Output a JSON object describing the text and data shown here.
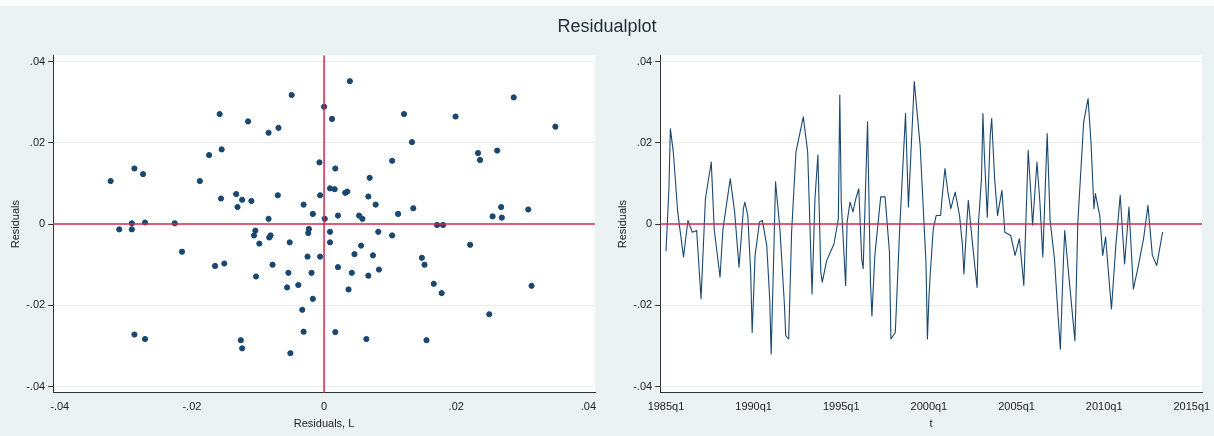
{
  "chart_data": [
    {
      "type": "scatter",
      "title": "Residualplot",
      "xlabel": "Residuals, L",
      "ylabel": "Residuals",
      "series": [
        {
          "color": "#1a476f",
          "x": [
            -0.0049,
            -0.0158,
            -0.0115,
            -0.0084,
            -0.0069,
            -0.0174,
            -0.0155,
            -0.0287,
            -0.0274,
            -0.0323,
            -0.0188,
            -0.0007,
            -0.0156,
            -0.0133,
            -0.0124,
            -0.011,
            -0.0131,
            -0.007,
            -0.0006,
            -0.0031,
            -0.0017,
            -0.0084,
            -0.031,
            -0.0291,
            -0.0291,
            -0.0271,
            -0.0226,
            -0.0215,
            -0.0104,
            -0.0106,
            -0.0098,
            -0.0081,
            -0.0083,
            -0.0052,
            -0.0023,
            -0.0024,
            -0.0165,
            -0.0151,
            -0.0103,
            -0.0078,
            -0.0054,
            -0.0025,
            -0.0006,
            -0.0019,
            -0.0056,
            -0.0039,
            -0.0017,
            -0.0033,
            -0.0031,
            -0.0287,
            -0.0271,
            -0.0126,
            -0.0124,
            -0.0051,
            0.0039,
            0.0,
            0.0012,
            0.0121,
            0.0199,
            0.0287,
            0.035,
            0.0133,
            0.0103,
            0.0017,
            0.0069,
            0.0233,
            0.0236,
            0.0262,
            0.0009,
            0.0016,
            0.0032,
            0.0035,
            0.0067,
            0.0078,
            0.0135,
            0.0112,
            0.0021,
            0.0053,
            0.0058,
            0.0001,
            0.0268,
            0.0255,
            0.0269,
            0.0309,
            0.0171,
            0.018,
            0.0009,
            0.0009,
            0.0082,
            0.0103,
            0.0221,
            0.0056,
            0.0046,
            0.0074,
            0.0021,
            0.0042,
            0.0067,
            0.0083,
            0.0148,
            0.0152,
            0.0037,
            0.0166,
            0.0178,
            0.0314,
            0.025,
            0.0017,
            0.0064,
            0.0155
          ],
          "values": [
            0.0318,
            0.0271,
            0.0253,
            0.0225,
            0.0237,
            0.017,
            0.0184,
            0.0137,
            0.0123,
            0.0106,
            0.0106,
            0.0152,
            0.0063,
            0.0074,
            0.006,
            0.0057,
            0.0042,
            0.0071,
            0.0071,
            0.0048,
            0.0025,
            0.0013,
            -0.0013,
            0.0002,
            -0.0013,
            0.0004,
            0.0002,
            -0.0068,
            -0.0016,
            -0.0028,
            -0.0048,
            -0.0028,
            -0.0033,
            -0.0045,
            -0.0012,
            -0.0022,
            -0.0103,
            -0.0097,
            -0.0129,
            -0.01,
            -0.012,
            -0.008,
            -0.008,
            -0.012,
            -0.0156,
            -0.015,
            -0.0184,
            -0.0211,
            -0.0265,
            -0.0272,
            -0.0283,
            -0.0286,
            -0.0306,
            -0.0318,
            0.0352,
            0.0289,
            0.0259,
            0.0271,
            0.0265,
            0.0312,
            0.024,
            0.0202,
            0.0156,
            0.0137,
            0.0114,
            0.0175,
            0.0158,
            0.0181,
            0.0088,
            0.0086,
            0.0077,
            0.008,
            0.0068,
            0.0048,
            0.0039,
            0.0025,
            0.0021,
            0.0021,
            0.0013,
            0.0013,
            0.0042,
            0.0019,
            0.0016,
            0.0036,
            -0.0002,
            -0.0002,
            -0.0019,
            -0.0045,
            -0.0019,
            -0.0028,
            -0.0051,
            -0.0053,
            -0.0074,
            -0.0077,
            -0.0106,
            -0.012,
            -0.0127,
            -0.0112,
            -0.0083,
            -0.01,
            -0.0161,
            -0.0147,
            -0.017,
            -0.0152,
            -0.0222,
            -0.0266,
            -0.0283,
            -0.0286
          ]
        }
      ],
      "xlim": [
        -0.041,
        0.041
      ],
      "xticks": [
        {
          "value": -0.04,
          "label": "-.04"
        },
        {
          "value": -0.02,
          "label": "-.02"
        },
        0,
        {
          "value": 0.02,
          "label": ".02"
        },
        {
          "value": 0.04,
          "label": ".04"
        }
      ],
      "ylim": [
        -0.0415,
        0.0415
      ],
      "yticks": [
        {
          "value": -0.04,
          "label": "-.04"
        },
        {
          "value": -0.02,
          "label": "-.02"
        },
        0,
        {
          "value": 0.02,
          "label": ".02"
        },
        {
          "value": 0.04,
          "label": ".04"
        }
      ],
      "ref_lines": [
        {
          "axis": "y",
          "value": 0,
          "color": "#d0294b"
        },
        {
          "axis": "x",
          "value": 0,
          "color": "#cc2a4c"
        }
      ],
      "grid": "y",
      "marker": "circle",
      "legend": false
    },
    {
      "type": "line",
      "xlabel": "t",
      "ylabel": "Residuals",
      "series": [
        {
          "color": "#1a476f",
          "x": [
            "1985-01",
            "1985-03",
            "1985-04",
            "1985-06",
            "1985-09",
            "1986-01",
            "1986-04",
            "1986-07",
            "1986-10",
            "1987-01",
            "1987-04",
            "1987-08",
            "1987-10",
            "1988-02",
            "1988-04",
            "1988-09",
            "1988-12",
            "1989-03",
            "1989-06",
            "1989-07",
            "1989-09",
            "1989-11",
            "1989-12",
            "1990-02",
            "1990-05",
            "1990-07",
            "1990-10",
            "1990-12",
            "1991-01",
            "1991-03",
            "1991-04",
            "1991-07",
            "1991-10",
            "1991-11",
            "1992-01",
            "1992-03",
            "1992-06",
            "1992-11",
            "1993-02",
            "1993-05",
            "1993-07",
            "1993-09",
            "1993-11",
            "1993-12",
            "1994-03",
            "1994-08",
            "1994-11",
            "1994-12",
            "1995-01",
            "1995-04",
            "1995-05",
            "1995-07",
            "1995-09",
            "1995-11",
            "1996-01",
            "1996-03",
            "1996-04",
            "1996-07",
            "1996-09",
            "1996-10",
            "1996-12",
            "1997-04",
            "1997-07",
            "1997-10",
            "1997-11",
            "1998-02",
            "1998-05",
            "1998-09",
            "1998-11",
            "1999-03",
            "1999-07",
            "1999-11",
            "1999-12",
            "2000-01",
            "2000-02",
            "2000-04",
            "2000-06",
            "2000-09",
            "2000-10",
            "2000-12",
            "2001-02",
            "2001-04",
            "2001-07",
            "2001-10",
            "2001-12",
            "2002-01",
            "2002-03",
            "2002-04",
            "2002-07",
            "2002-10",
            "2002-11",
            "2003-01",
            "2003-02",
            "2003-03",
            "2003-05",
            "2003-07",
            "2003-08",
            "2003-10",
            "2003-12",
            "2004-03",
            "2004-05",
            "2004-09",
            "2004-12",
            "2005-03",
            "2005-06",
            "2005-09",
            "2005-11",
            "2005-12",
            "2006-03",
            "2006-05",
            "2006-07",
            "2006-10",
            "2006-12",
            "2007-03",
            "2007-05",
            "2007-07",
            "2007-09",
            "2007-10",
            "2008-01",
            "2008-05",
            "2008-07",
            "2008-11",
            "2009-02",
            "2009-04",
            "2009-06",
            "2009-07",
            "2009-10",
            "2009-12",
            "2010-02",
            "2010-06",
            "2010-09",
            "2010-12",
            "2011-03",
            "2011-06",
            "2011-09",
            "2011-12",
            "2012-04",
            "2012-07",
            "2012-10",
            "2013-01",
            "2013-05"
          ],
          "values": [
            -0.0067,
            0.0087,
            0.0235,
            0.0178,
            0.003,
            -0.0081,
            0.0009,
            -0.002,
            -0.0016,
            -0.0184,
            0.0063,
            0.0153,
            -0.0012,
            -0.0131,
            -0.0012,
            0.0112,
            0.003,
            -0.0106,
            0.0038,
            0.0054,
            0.0021,
            -0.0119,
            -0.0267,
            -0.0077,
            0.0005,
            0.0009,
            -0.0053,
            -0.0184,
            -0.032,
            -0.0044,
            0.0104,
            -0.0012,
            -0.0193,
            -0.0275,
            -0.0283,
            -0.002,
            0.0178,
            0.0264,
            0.0178,
            -0.0172,
            0.0063,
            0.017,
            -0.0119,
            -0.0143,
            -0.009,
            -0.0049,
            0.0013,
            0.0318,
            0.0054,
            -0.0151,
            0.0005,
            0.0054,
            0.003,
            0.0063,
            0.0087,
            -0.0086,
            -0.011,
            0.0252,
            -0.0143,
            -0.0226,
            -0.0077,
            0.0067,
            0.0067,
            -0.0069,
            -0.0283,
            -0.0267,
            -0.0012,
            0.0272,
            0.0042,
            0.0351,
            0.0194,
            -0.0094,
            -0.0283,
            -0.0184,
            -0.0119,
            -0.0012,
            0.0021,
            0.0021,
            0.0063,
            0.0137,
            0.0079,
            0.0038,
            0.0079,
            0.0021,
            -0.0053,
            -0.0123,
            0.0005,
            0.0058,
            -0.0053,
            -0.0156,
            0.0005,
            0.0112,
            0.0272,
            0.017,
            0.0017,
            0.0219,
            0.026,
            0.0112,
            0.0021,
            0.0083,
            -0.002,
            -0.0028,
            -0.0077,
            -0.0036,
            -0.0151,
            0.0182,
            0.0063,
            -0.0003,
            0.0153,
            0.0054,
            -0.0081,
            0.0223,
            0.0009,
            -0.0086,
            -0.0201,
            -0.0308,
            -0.0102,
            -0.0016,
            -0.0135,
            -0.0287,
            0.0005,
            0.0252,
            0.0309,
            0.0202,
            0.0038,
            0.0075,
            0.0021,
            -0.0077,
            -0.0032,
            -0.0209,
            -0.0053,
            0.0071,
            -0.0098,
            0.0042,
            -0.016,
            -0.011,
            -0.0036,
            0.0046,
            -0.0077,
            -0.0102,
            -0.002
          ]
        }
      ],
      "xlim": [
        "1984-09",
        "2015-08"
      ],
      "xticks": [
        {
          "value": "1985-01",
          "label": "1985q1"
        },
        {
          "value": "1990-01",
          "label": "1990q1"
        },
        {
          "value": "1995-01",
          "label": "1995q1"
        },
        {
          "value": "2000-01",
          "label": "2000q1"
        },
        {
          "value": "2005-01",
          "label": "2005q1"
        },
        {
          "value": "2010-01",
          "label": "2010q1"
        },
        {
          "value": "2015-01",
          "label": "2015q1"
        }
      ],
      "ylim": [
        -0.0415,
        0.0415
      ],
      "yticks": [
        {
          "value": -0.04,
          "label": "-.04"
        },
        {
          "value": -0.02,
          "label": "-.02"
        },
        0,
        {
          "value": 0.02,
          "label": ".02"
        },
        {
          "value": 0.04,
          "label": ".04"
        }
      ],
      "ref_lines": [
        {
          "axis": "y",
          "value": 0,
          "color": "#d0294b"
        }
      ],
      "grid": "y",
      "marker": "none",
      "line_style": "solid",
      "legend": false
    }
  ]
}
